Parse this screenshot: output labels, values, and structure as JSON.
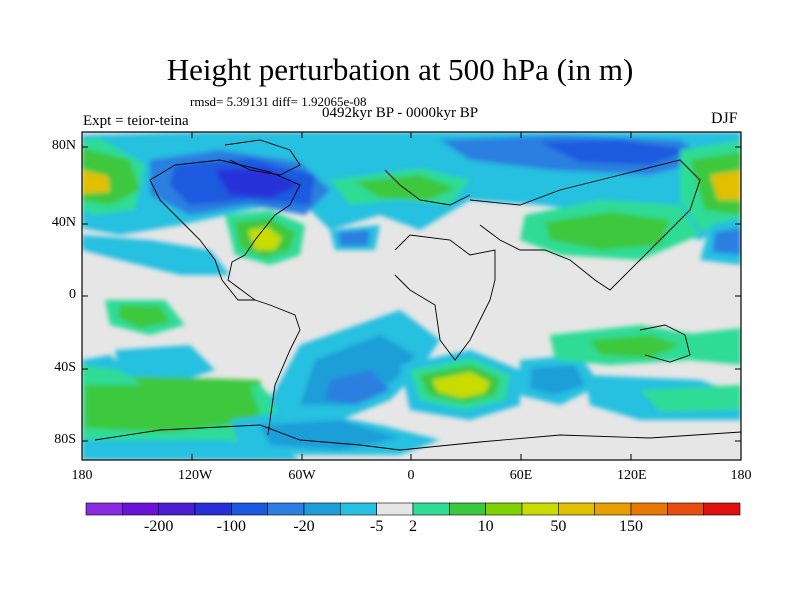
{
  "title": "Height perturbation at 500 hPa (in m)",
  "stats_line": "rmsd= 5.39131 diff= 1.92065e-08",
  "experiment": "Expt = teior-teina",
  "period": "0492kyr BP - 0000kyr BP",
  "season": "DJF",
  "lat_ticks": [
    "80N",
    "40N",
    "0",
    "40S",
    "80S"
  ],
  "lon_ticks": [
    "180",
    "120W",
    "60W",
    "0",
    "60E",
    "120E",
    "180"
  ],
  "colorbar": {
    "colors": [
      "#8a2be2",
      "#6a12d8",
      "#4b1ed2",
      "#2730d8",
      "#1a5ae0",
      "#2b7fe0",
      "#1e9ed8",
      "#28c0e0",
      "#e6e6e6",
      "#2edc96",
      "#3cc83c",
      "#7fd200",
      "#c8dc00",
      "#e0c000",
      "#e8a000",
      "#e87800",
      "#e84c10",
      "#e01010"
    ],
    "labels": [
      "-200",
      "-100",
      "-20",
      "-5",
      "2",
      "10",
      "50",
      "150"
    ]
  },
  "map_colors": {
    "neutral": "#e6e6e6",
    "cyan": "#28c0e0",
    "light_blue": "#1e9ed8",
    "blue": "#2b7fe0",
    "dark_blue": "#1a5ae0",
    "deep_blue": "#2730d8",
    "teal_green": "#2edc96",
    "green": "#3cc83c",
    "yellow_green": "#c8dc00",
    "yellow": "#e0c000",
    "orange": "#e8a000",
    "coast": "#000000"
  }
}
